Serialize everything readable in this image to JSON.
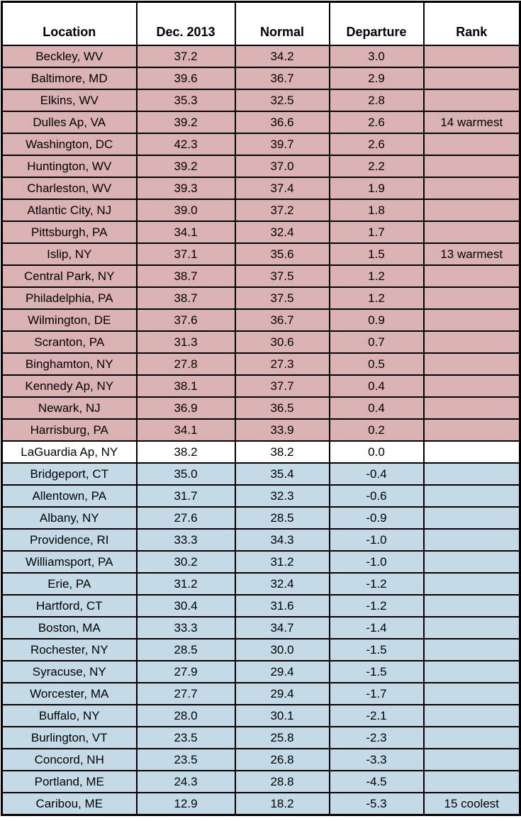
{
  "colors": {
    "warm_row": "#DBB2B4",
    "cool_row": "#C4DBE7",
    "neutral_row": "#FFFFFF",
    "header_bg": "#FFFFFF",
    "border": "#000000",
    "text": "#000000"
  },
  "chart_data": {
    "type": "table",
    "columns": [
      "Location",
      "Dec. 2013",
      "Normal",
      "Departure",
      "Rank"
    ],
    "legend_meaning": {
      "warm": "positive departure (above normal)",
      "neutral": "zero departure",
      "cool": "negative departure (below normal)"
    },
    "rows": [
      {
        "location": "Beckley, WV",
        "dec_2013": "37.2",
        "normal": "34.2",
        "departure": "3.0",
        "rank": "",
        "tone": "warm"
      },
      {
        "location": "Baltimore, MD",
        "dec_2013": "39.6",
        "normal": "36.7",
        "departure": "2.9",
        "rank": "",
        "tone": "warm"
      },
      {
        "location": "Elkins, WV",
        "dec_2013": "35.3",
        "normal": "32.5",
        "departure": "2.8",
        "rank": "",
        "tone": "warm"
      },
      {
        "location": "Dulles Ap, VA",
        "dec_2013": "39.2",
        "normal": "36.6",
        "departure": "2.6",
        "rank": "14 warmest",
        "tone": "warm"
      },
      {
        "location": "Washington, DC",
        "dec_2013": "42.3",
        "normal": "39.7",
        "departure": "2.6",
        "rank": "",
        "tone": "warm"
      },
      {
        "location": "Huntington, WV",
        "dec_2013": "39.2",
        "normal": "37.0",
        "departure": "2.2",
        "rank": "",
        "tone": "warm"
      },
      {
        "location": "Charleston, WV",
        "dec_2013": "39.3",
        "normal": "37.4",
        "departure": "1.9",
        "rank": "",
        "tone": "warm"
      },
      {
        "location": "Atlantic City, NJ",
        "dec_2013": "39.0",
        "normal": "37.2",
        "departure": "1.8",
        "rank": "",
        "tone": "warm"
      },
      {
        "location": "Pittsburgh, PA",
        "dec_2013": "34.1",
        "normal": "32.4",
        "departure": "1.7",
        "rank": "",
        "tone": "warm"
      },
      {
        "location": "Islip, NY",
        "dec_2013": "37.1",
        "normal": "35.6",
        "departure": "1.5",
        "rank": "13 warmest",
        "tone": "warm"
      },
      {
        "location": "Central Park, NY",
        "dec_2013": "38.7",
        "normal": "37.5",
        "departure": "1.2",
        "rank": "",
        "tone": "warm"
      },
      {
        "location": "Philadelphia, PA",
        "dec_2013": "38.7",
        "normal": "37.5",
        "departure": "1.2",
        "rank": "",
        "tone": "warm"
      },
      {
        "location": "Wilmington, DE",
        "dec_2013": "37.6",
        "normal": "36.7",
        "departure": "0.9",
        "rank": "",
        "tone": "warm"
      },
      {
        "location": "Scranton, PA",
        "dec_2013": "31.3",
        "normal": "30.6",
        "departure": "0.7",
        "rank": "",
        "tone": "warm"
      },
      {
        "location": "Binghamton, NY",
        "dec_2013": "27.8",
        "normal": "27.3",
        "departure": "0.5",
        "rank": "",
        "tone": "warm"
      },
      {
        "location": "Kennedy Ap, NY",
        "dec_2013": "38.1",
        "normal": "37.7",
        "departure": "0.4",
        "rank": "",
        "tone": "warm"
      },
      {
        "location": "Newark, NJ",
        "dec_2013": "36.9",
        "normal": "36.5",
        "departure": "0.4",
        "rank": "",
        "tone": "warm"
      },
      {
        "location": "Harrisburg, PA",
        "dec_2013": "34.1",
        "normal": "33.9",
        "departure": "0.2",
        "rank": "",
        "tone": "warm"
      },
      {
        "location": "LaGuardia Ap, NY",
        "dec_2013": "38.2",
        "normal": "38.2",
        "departure": "0.0",
        "rank": "",
        "tone": "neutral"
      },
      {
        "location": "Bridgeport, CT",
        "dec_2013": "35.0",
        "normal": "35.4",
        "departure": "-0.4",
        "rank": "",
        "tone": "cool"
      },
      {
        "location": "Allentown, PA",
        "dec_2013": "31.7",
        "normal": "32.3",
        "departure": "-0.6",
        "rank": "",
        "tone": "cool"
      },
      {
        "location": "Albany, NY",
        "dec_2013": "27.6",
        "normal": "28.5",
        "departure": "-0.9",
        "rank": "",
        "tone": "cool"
      },
      {
        "location": "Providence, RI",
        "dec_2013": "33.3",
        "normal": "34.3",
        "departure": "-1.0",
        "rank": "",
        "tone": "cool"
      },
      {
        "location": "Williamsport, PA",
        "dec_2013": "30.2",
        "normal": "31.2",
        "departure": "-1.0",
        "rank": "",
        "tone": "cool"
      },
      {
        "location": "Erie, PA",
        "dec_2013": "31.2",
        "normal": "32.4",
        "departure": "-1.2",
        "rank": "",
        "tone": "cool"
      },
      {
        "location": "Hartford, CT",
        "dec_2013": "30.4",
        "normal": "31.6",
        "departure": "-1.2",
        "rank": "",
        "tone": "cool"
      },
      {
        "location": "Boston, MA",
        "dec_2013": "33.3",
        "normal": "34.7",
        "departure": "-1.4",
        "rank": "",
        "tone": "cool"
      },
      {
        "location": "Rochester, NY",
        "dec_2013": "28.5",
        "normal": "30.0",
        "departure": "-1.5",
        "rank": "",
        "tone": "cool"
      },
      {
        "location": "Syracuse, NY",
        "dec_2013": "27.9",
        "normal": "29.4",
        "departure": "-1.5",
        "rank": "",
        "tone": "cool"
      },
      {
        "location": "Worcester, MA",
        "dec_2013": "27.7",
        "normal": "29.4",
        "departure": "-1.7",
        "rank": "",
        "tone": "cool"
      },
      {
        "location": "Buffalo, NY",
        "dec_2013": "28.0",
        "normal": "30.1",
        "departure": "-2.1",
        "rank": "",
        "tone": "cool"
      },
      {
        "location": "Burlington, VT",
        "dec_2013": "23.5",
        "normal": "25.8",
        "departure": "-2.3",
        "rank": "",
        "tone": "cool"
      },
      {
        "location": "Concord, NH",
        "dec_2013": "23.5",
        "normal": "26.8",
        "departure": "-3.3",
        "rank": "",
        "tone": "cool"
      },
      {
        "location": "Portland, ME",
        "dec_2013": "24.3",
        "normal": "28.8",
        "departure": "-4.5",
        "rank": "",
        "tone": "cool"
      },
      {
        "location": "Caribou, ME",
        "dec_2013": "12.9",
        "normal": "18.2",
        "departure": "-5.3",
        "rank": "15 coolest",
        "tone": "cool"
      }
    ]
  }
}
